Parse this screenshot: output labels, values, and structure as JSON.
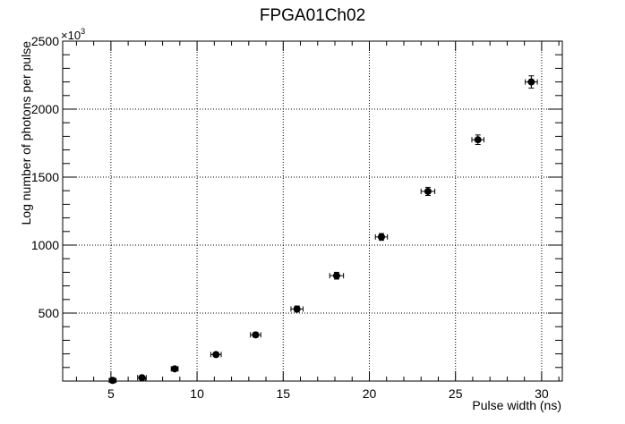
{
  "chart_data": {
    "type": "scatter",
    "title": "FPGA01Ch02",
    "xlabel": "Pulse width (ns)",
    "ylabel": "Log number of photons per pulse",
    "y_multiplier_label": "×10",
    "y_multiplier_exponent": "3",
    "xlim": [
      2.2,
      31.2
    ],
    "ylim": [
      0,
      2500
    ],
    "x_ticks": [
      5,
      10,
      15,
      20,
      25,
      30
    ],
    "x_tick_labels": [
      "5",
      "10",
      "15",
      "20",
      "25",
      "30"
    ],
    "y_ticks": [
      500,
      1000,
      1500,
      2000,
      2500
    ],
    "y_tick_labels": [
      "500",
      "1000",
      "1500",
      "2000",
      "2500"
    ],
    "grid": true,
    "legend": "none",
    "series": [
      {
        "color": "#000000",
        "x": [
          5.1,
          6.8,
          8.7,
          11.1,
          13.4,
          15.8,
          18.1,
          20.7,
          23.4,
          26.3,
          29.4
        ],
        "y": [
          5,
          25,
          90,
          195,
          340,
          530,
          775,
          1060,
          1395,
          1775,
          2200
        ],
        "x_err": [
          0.2,
          0.25,
          0.2,
          0.3,
          0.3,
          0.35,
          0.4,
          0.35,
          0.4,
          0.35,
          0.35
        ],
        "y_err": [
          8,
          10,
          12,
          15,
          18,
          22,
          25,
          25,
          30,
          35,
          45
        ]
      }
    ]
  }
}
